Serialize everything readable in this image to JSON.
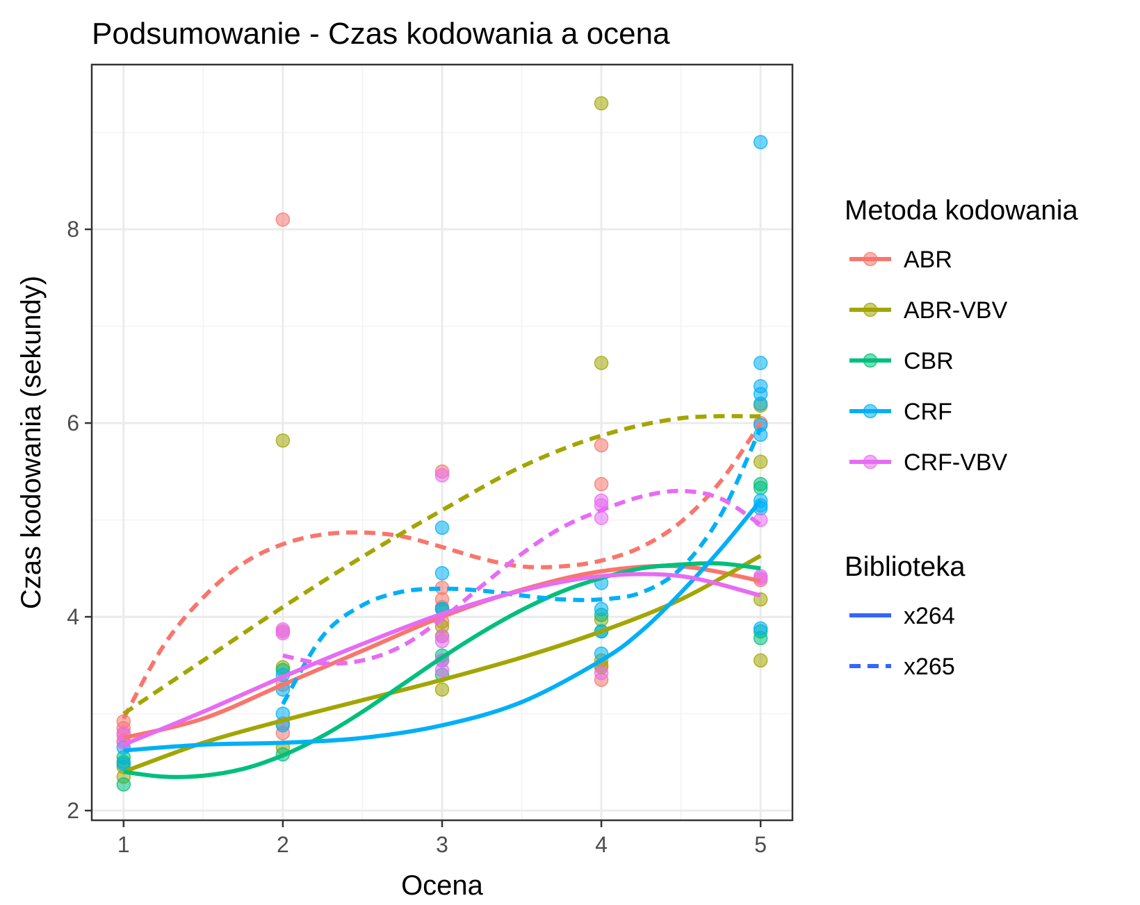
{
  "chart_data": {
    "type": "scatter",
    "title": "Podsumowanie - Czas kodowania a ocena",
    "xlabel": "Ocena",
    "ylabel": "Czas kodowania (sekundy)",
    "xlim": [
      0.8,
      5.2
    ],
    "ylim": [
      1.9,
      9.7
    ],
    "x_ticks": [
      1,
      2,
      3,
      4,
      5
    ],
    "y_ticks": [
      2,
      4,
      6,
      8
    ],
    "grid": true,
    "legend_position": "right",
    "colors": {
      "ABR": "#F8766D",
      "ABR-VBV": "#A3A500",
      "CBR": "#00BF7D",
      "CRF": "#00B0F6",
      "CRF-VBV": "#E76BF3"
    },
    "legend": {
      "method_title": "Metoda kodowania",
      "methods": [
        "ABR",
        "ABR-VBV",
        "CBR",
        "CRF",
        "CRF-VBV"
      ],
      "library_title": "Biblioteka",
      "libraries": [
        {
          "name": "x264",
          "dash": "solid"
        },
        {
          "name": "x265",
          "dash": "dashed"
        }
      ]
    },
    "points": {
      "ABR": [
        [
          1,
          2.92
        ],
        [
          1,
          2.85
        ],
        [
          1,
          2.78
        ],
        [
          1,
          2.72
        ],
        [
          2,
          8.1
        ],
        [
          2,
          3.85
        ],
        [
          2,
          3.3
        ],
        [
          2,
          2.9
        ],
        [
          2,
          2.8
        ],
        [
          3,
          5.5
        ],
        [
          3,
          4.3
        ],
        [
          3,
          4.18
        ],
        [
          3,
          4.1
        ],
        [
          3,
          3.95
        ],
        [
          4,
          5.77
        ],
        [
          4,
          5.37
        ],
        [
          4,
          3.5
        ],
        [
          4,
          3.35
        ],
        [
          5,
          6.0
        ],
        [
          5,
          4.38
        ]
      ],
      "ABR-VBV": [
        [
          1,
          2.35
        ],
        [
          1,
          2.45
        ],
        [
          2,
          5.82
        ],
        [
          2,
          3.48
        ],
        [
          2,
          2.65
        ],
        [
          3,
          3.9
        ],
        [
          3,
          3.8
        ],
        [
          3,
          3.25
        ],
        [
          4,
          9.3
        ],
        [
          4,
          6.62
        ],
        [
          4,
          3.97
        ],
        [
          4,
          3.55
        ],
        [
          4,
          3.48
        ],
        [
          5,
          6.18
        ],
        [
          5,
          5.6
        ],
        [
          5,
          4.18
        ],
        [
          5,
          3.55
        ]
      ],
      "CBR": [
        [
          1,
          2.55
        ],
        [
          1,
          2.5
        ],
        [
          1,
          2.27
        ],
        [
          2,
          3.45
        ],
        [
          2,
          2.58
        ],
        [
          3,
          4.08
        ],
        [
          3,
          3.6
        ],
        [
          3,
          3.55
        ],
        [
          3,
          3.4
        ],
        [
          4,
          4.02
        ],
        [
          4,
          3.85
        ],
        [
          5,
          5.37
        ],
        [
          5,
          5.33
        ],
        [
          5,
          3.85
        ],
        [
          5,
          3.78
        ]
      ],
      "CRF": [
        [
          1,
          2.65
        ],
        [
          1,
          2.48
        ],
        [
          2,
          3.4
        ],
        [
          2,
          3.25
        ],
        [
          2,
          3.0
        ],
        [
          2,
          2.88
        ],
        [
          3,
          4.92
        ],
        [
          3,
          4.45
        ],
        [
          3,
          4.08
        ],
        [
          4,
          4.35
        ],
        [
          4,
          4.08
        ],
        [
          4,
          3.85
        ],
        [
          4,
          3.62
        ],
        [
          5,
          8.9
        ],
        [
          5,
          6.62
        ],
        [
          5,
          6.38
        ],
        [
          5,
          6.3
        ],
        [
          5,
          6.2
        ],
        [
          5,
          5.98
        ],
        [
          5,
          5.88
        ],
        [
          5,
          5.2
        ],
        [
          5,
          5.15
        ],
        [
          5,
          5.12
        ],
        [
          5,
          3.88
        ]
      ],
      "CRF-VBV": [
        [
          1,
          2.8
        ],
        [
          1,
          2.7
        ],
        [
          2,
          3.87
        ],
        [
          2,
          3.83
        ],
        [
          3,
          5.46
        ],
        [
          3,
          3.8
        ],
        [
          3,
          3.75
        ],
        [
          3,
          3.55
        ],
        [
          3,
          3.45
        ],
        [
          4,
          5.2
        ],
        [
          4,
          5.15
        ],
        [
          4,
          5.02
        ],
        [
          4,
          3.42
        ],
        [
          5,
          5.0
        ],
        [
          5,
          4.42
        ],
        [
          5,
          4.4
        ]
      ]
    },
    "series": [
      {
        "method": "ABR",
        "library": "x264",
        "x": [
          1,
          1.5,
          2,
          2.5,
          3,
          3.5,
          4,
          4.5,
          5
        ],
        "y": [
          2.75,
          2.95,
          3.3,
          3.65,
          4.0,
          4.28,
          4.47,
          4.52,
          4.37
        ]
      },
      {
        "method": "ABR",
        "library": "x265",
        "x": [
          1,
          1.25,
          1.5,
          1.75,
          2,
          2.25,
          2.5,
          2.75,
          3,
          3.25,
          3.5,
          3.75,
          4,
          4.25,
          4.5,
          4.75,
          5
        ],
        "y": [
          2.95,
          3.7,
          4.2,
          4.55,
          4.75,
          4.85,
          4.87,
          4.83,
          4.72,
          4.6,
          4.52,
          4.52,
          4.58,
          4.72,
          4.98,
          5.4,
          6.0
        ]
      },
      {
        "method": "ABR-VBV",
        "library": "x264",
        "x": [
          1,
          1.5,
          2,
          2.5,
          3,
          3.5,
          4,
          4.5,
          5
        ],
        "y": [
          2.4,
          2.7,
          2.93,
          3.14,
          3.35,
          3.58,
          3.85,
          4.18,
          4.63
        ]
      },
      {
        "method": "ABR-VBV",
        "library": "x265",
        "x": [
          1,
          1.5,
          2,
          2.5,
          3,
          3.5,
          4,
          4.5,
          5
        ],
        "y": [
          3.0,
          3.55,
          4.1,
          4.62,
          5.1,
          5.55,
          5.87,
          6.05,
          6.07
        ]
      },
      {
        "method": "CBR",
        "library": "x264",
        "x": [
          1,
          1.25,
          1.5,
          1.75,
          2,
          2.25,
          2.5,
          2.75,
          3,
          3.25,
          3.5,
          3.75,
          4,
          4.25,
          4.5,
          4.75,
          5
        ],
        "y": [
          2.4,
          2.35,
          2.36,
          2.43,
          2.57,
          2.77,
          3.02,
          3.3,
          3.58,
          3.84,
          4.07,
          4.26,
          4.4,
          4.5,
          4.54,
          4.55,
          4.5
        ]
      },
      {
        "method": "CRF",
        "library": "x264",
        "x": [
          1,
          1.5,
          2,
          2.5,
          3,
          3.5,
          4,
          4.25,
          4.5,
          4.75,
          5
        ],
        "y": [
          2.62,
          2.68,
          2.7,
          2.75,
          2.88,
          3.12,
          3.55,
          3.85,
          4.25,
          4.7,
          5.2
        ]
      },
      {
        "method": "CRF",
        "library": "x265",
        "x": [
          2,
          2.25,
          2.5,
          2.75,
          3,
          3.25,
          3.5,
          3.75,
          4,
          4.25,
          4.5,
          4.75,
          5
        ],
        "y": [
          3.1,
          3.8,
          4.12,
          4.26,
          4.29,
          4.27,
          4.22,
          4.18,
          4.18,
          4.25,
          4.5,
          5.05,
          5.95
        ]
      },
      {
        "method": "CRF-VBV",
        "library": "x264",
        "x": [
          1,
          1.5,
          2,
          2.5,
          3,
          3.5,
          4,
          4.5,
          5
        ],
        "y": [
          2.68,
          3.02,
          3.38,
          3.72,
          4.03,
          4.27,
          4.42,
          4.42,
          4.22
        ]
      },
      {
        "method": "CRF-VBV",
        "library": "x265",
        "x": [
          2,
          2.25,
          2.5,
          2.75,
          3,
          3.25,
          3.5,
          3.75,
          4,
          4.25,
          4.5,
          4.75,
          5
        ],
        "y": [
          3.6,
          3.52,
          3.55,
          3.7,
          3.98,
          4.32,
          4.65,
          4.92,
          5.1,
          5.24,
          5.3,
          5.22,
          4.95
        ]
      }
    ]
  }
}
